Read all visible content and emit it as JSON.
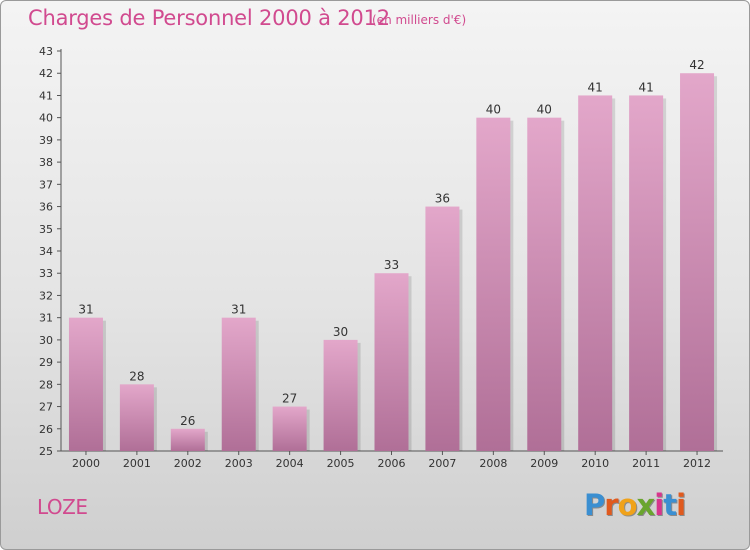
{
  "header": {
    "title": "Charges de Personnel 2000 à 2012",
    "subtitle": "(en milliers d'€)"
  },
  "footer": {
    "commune": "LOZE",
    "brand_letters": [
      "P",
      "r",
      "o",
      "x",
      "i",
      "t",
      "i"
    ],
    "brand_colors": [
      "#3b8fd1",
      "#e05a1e",
      "#f0a21a",
      "#6aa52e",
      "#d8358d",
      "#3b8fd1",
      "#e05a1e"
    ]
  },
  "colors": {
    "bar_top": "#e3a7ca",
    "bar_bottom": "#b06f97",
    "text": "#d14a8f",
    "grid": "#c8c8c8"
  },
  "chart_data": {
    "type": "bar",
    "title": "Charges de Personnel 2000 à 2012",
    "subtitle": "(en milliers d'€)",
    "categories": [
      "2000",
      "2001",
      "2002",
      "2003",
      "2004",
      "2005",
      "2006",
      "2007",
      "2008",
      "2009",
      "2010",
      "2011",
      "2012"
    ],
    "values": [
      31,
      28,
      26,
      31,
      27,
      30,
      33,
      36,
      40,
      40,
      41,
      41,
      42
    ],
    "ylim": [
      25,
      43
    ],
    "yticks": [
      25,
      26,
      27,
      28,
      29,
      30,
      31,
      32,
      33,
      34,
      35,
      36,
      37,
      38,
      39,
      40,
      41,
      42,
      43
    ],
    "grid": false,
    "legend": "none"
  }
}
